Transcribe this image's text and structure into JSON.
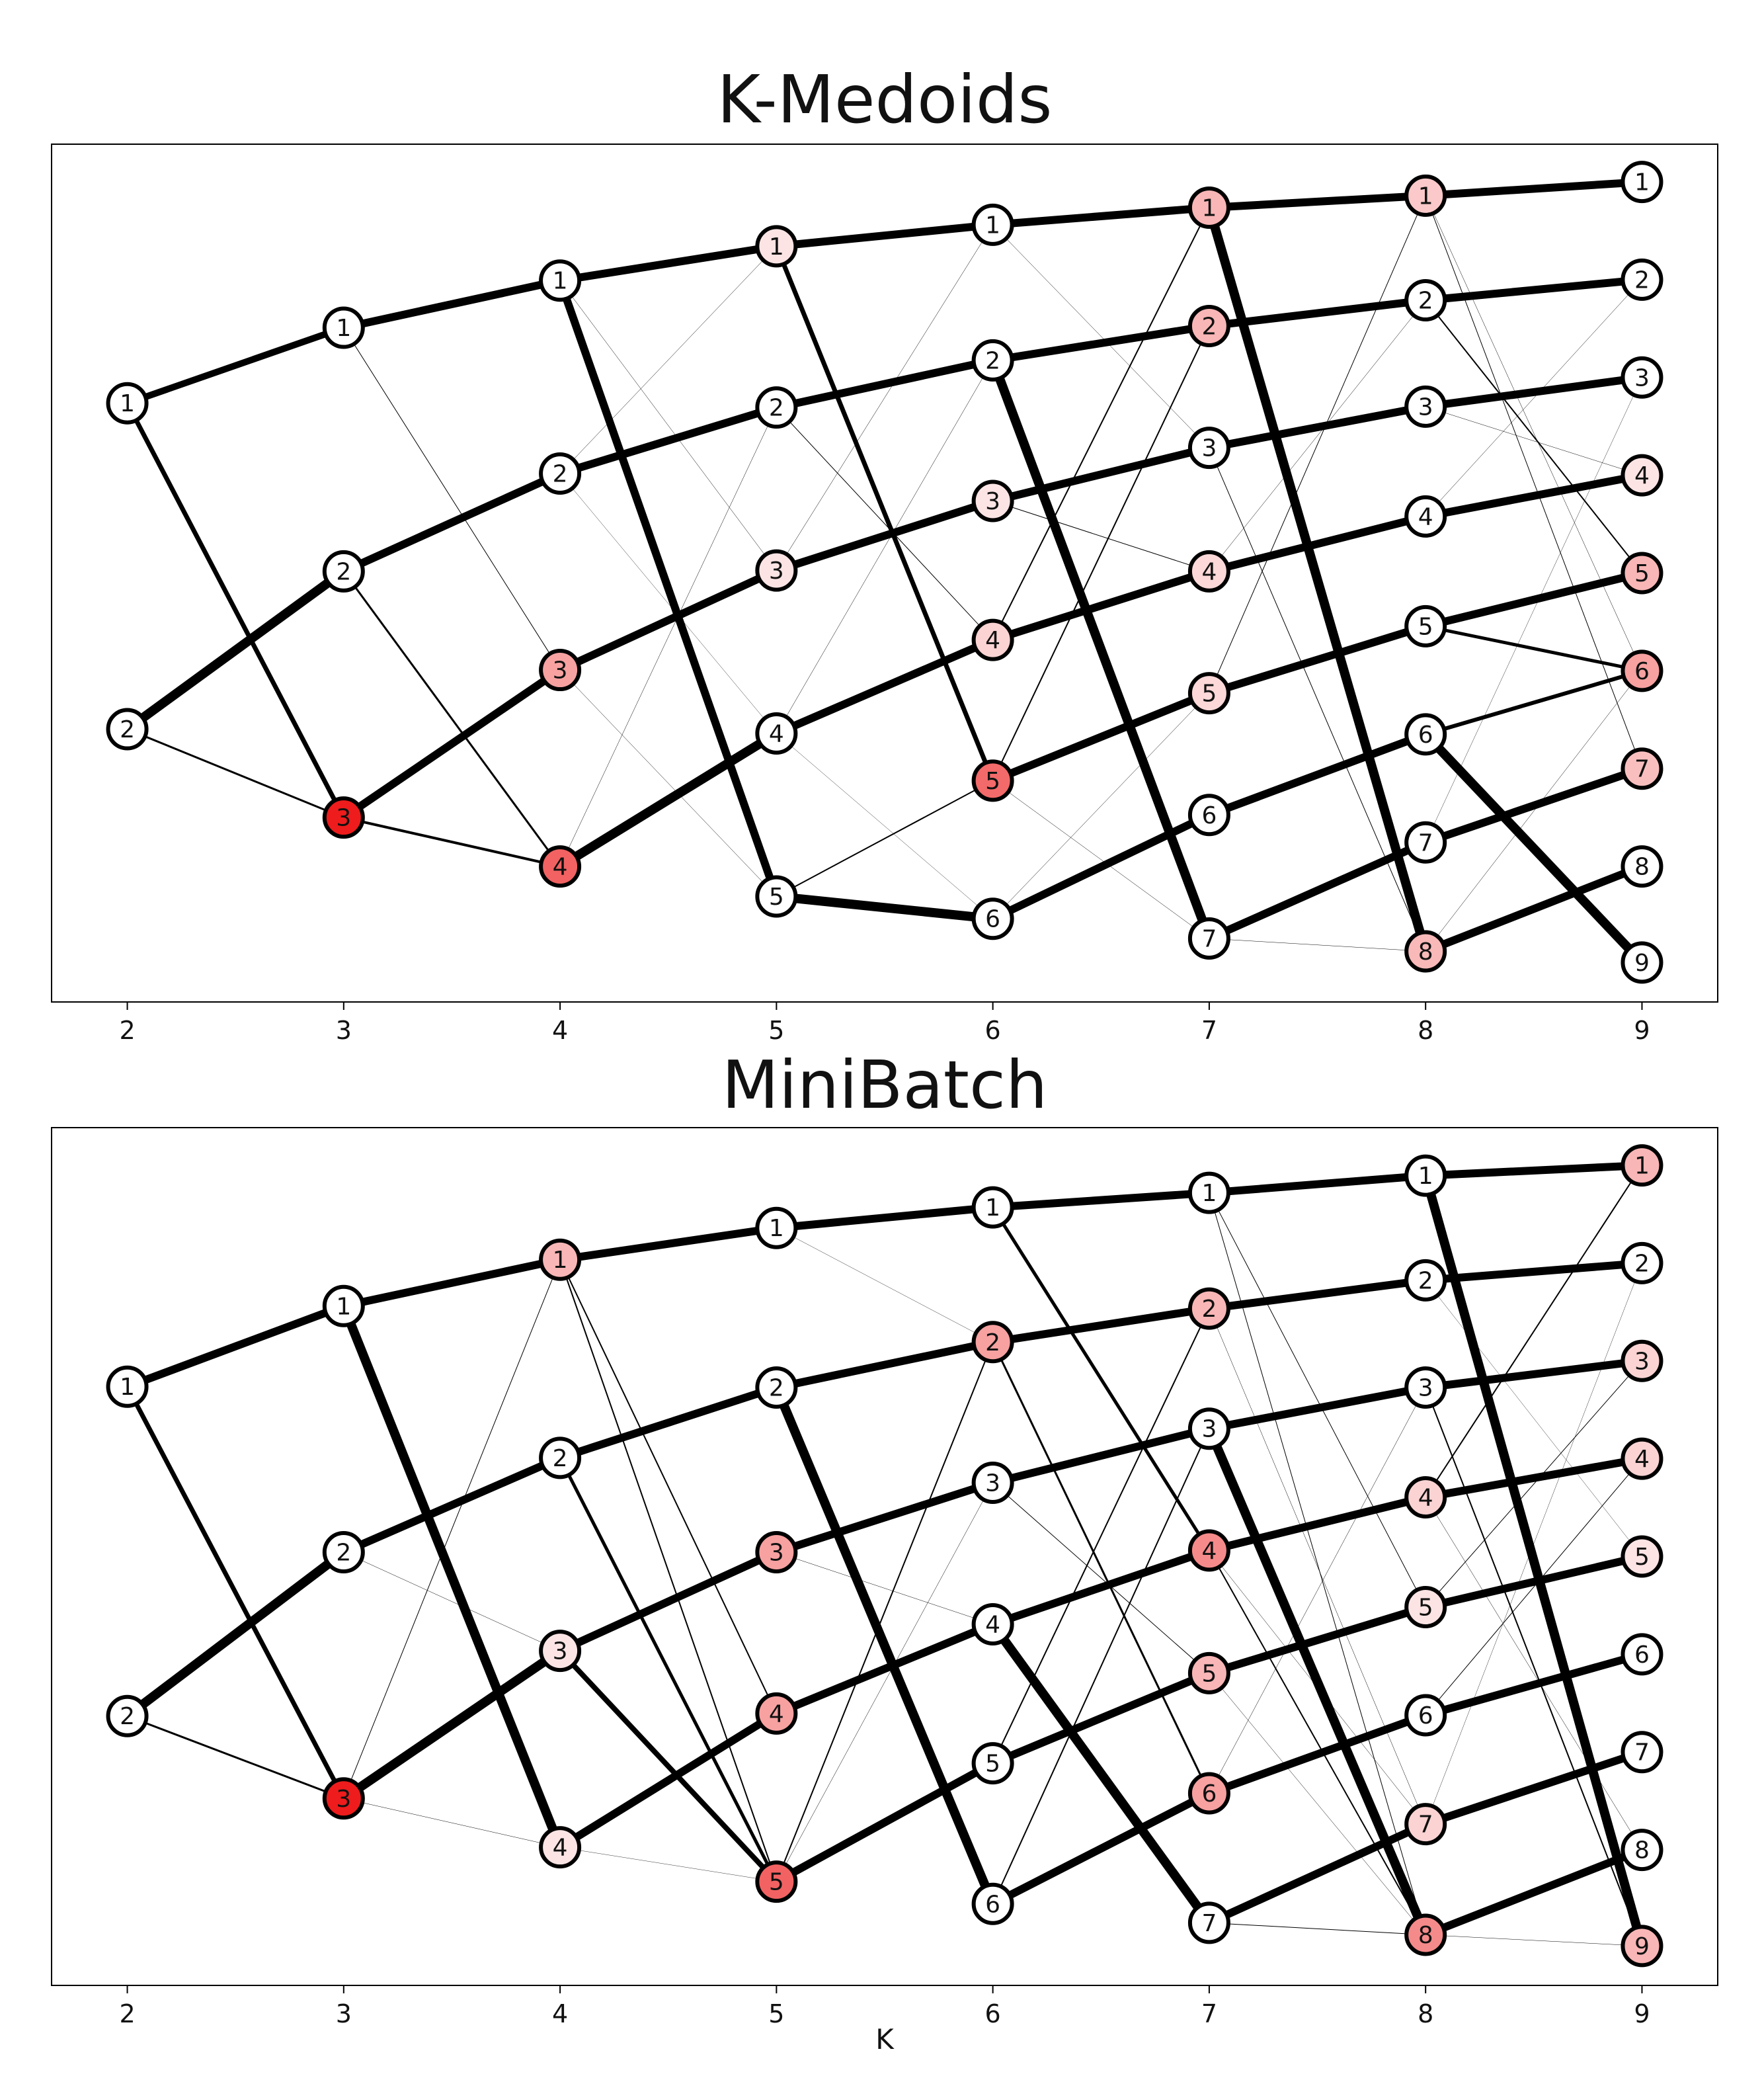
{
  "x_axis_label": "K",
  "chart_data": [
    {
      "type": "diagram",
      "title": "K-Medoids",
      "x_ticks": [
        2,
        3,
        4,
        5,
        6,
        7,
        8,
        9
      ],
      "xlim": [
        1.65,
        9.35
      ],
      "ylim": [
        0,
        1
      ],
      "node_rows": {
        "2": [
          0.698,
          0.318
        ],
        "3": [
          0.786,
          0.502,
          0.215
        ],
        "4": [
          0.841,
          0.616,
          0.387,
          0.158
        ],
        "5": [
          0.881,
          0.693,
          0.503,
          0.313,
          0.123
        ],
        "6": [
          0.906,
          0.748,
          0.584,
          0.422,
          0.258,
          0.097
        ],
        "7": [
          0.926,
          0.788,
          0.646,
          0.502,
          0.36,
          0.218,
          0.074
        ],
        "8": [
          0.94,
          0.818,
          0.694,
          0.566,
          0.438,
          0.312,
          0.186,
          0.059
        ],
        "9": [
          0.956,
          0.842,
          0.728,
          0.614,
          0.5,
          0.386,
          0.272,
          0.158,
          0.046
        ]
      },
      "node_colors": {
        "2": [
          "#ffffff",
          "#ffffff"
        ],
        "3": [
          "#ffffff",
          "#ffffff",
          "#ee1c1c"
        ],
        "4": [
          "#ffffff",
          "#ffffff",
          "#f7a1a1",
          "#f26262"
        ],
        "5": [
          "#fde4e4",
          "#ffffff",
          "#fde4e4",
          "#ffffff",
          "#ffffff"
        ],
        "6": [
          "#ffffff",
          "#ffffff",
          "#fde4e4",
          "#fbd3d3",
          "#f36a6a",
          "#ffffff"
        ],
        "7": [
          "#f9b6b6",
          "#f9b6b6",
          "#ffffff",
          "#fcd8d8",
          "#fcd8d8",
          "#ffffff",
          "#ffffff"
        ],
        "8": [
          "#fbc9c9",
          "#ffffff",
          "#ffffff",
          "#ffffff",
          "#ffffff",
          "#ffffff",
          "#ffffff",
          "#f9b9b9"
        ],
        "9": [
          "#ffffff",
          "#ffffff",
          "#ffffff",
          "#fde4e4",
          "#f9b6b6",
          "#f7a1a1",
          "#f9bfbf",
          "#ffffff",
          "#ffffff"
        ]
      },
      "edges": [
        [
          2,
          1,
          3,
          1,
          10
        ],
        [
          2,
          1,
          3,
          3,
          7
        ],
        [
          2,
          2,
          3,
          2,
          14
        ],
        [
          2,
          2,
          3,
          3,
          3
        ],
        [
          3,
          1,
          4,
          1,
          12
        ],
        [
          3,
          1,
          4,
          3,
          1
        ],
        [
          3,
          2,
          4,
          2,
          12
        ],
        [
          3,
          2,
          4,
          4,
          3
        ],
        [
          3,
          3,
          4,
          3,
          12
        ],
        [
          3,
          3,
          4,
          4,
          4
        ],
        [
          4,
          1,
          5,
          1,
          12
        ],
        [
          4,
          1,
          5,
          5,
          12
        ],
        [
          4,
          1,
          5,
          3,
          0.5
        ],
        [
          4,
          2,
          5,
          2,
          12
        ],
        [
          4,
          2,
          5,
          1,
          0.5
        ],
        [
          4,
          2,
          5,
          4,
          0.4
        ],
        [
          4,
          3,
          5,
          3,
          12
        ],
        [
          4,
          3,
          5,
          5,
          0.5
        ],
        [
          4,
          4,
          5,
          4,
          14
        ],
        [
          4,
          4,
          5,
          2,
          0.5
        ],
        [
          5,
          1,
          6,
          1,
          12
        ],
        [
          5,
          1,
          6,
          5,
          7
        ],
        [
          5,
          2,
          6,
          2,
          12
        ],
        [
          5,
          2,
          6,
          4,
          1
        ],
        [
          5,
          3,
          6,
          3,
          12
        ],
        [
          5,
          3,
          6,
          1,
          0.5
        ],
        [
          5,
          4,
          6,
          4,
          12
        ],
        [
          5,
          4,
          6,
          2,
          0.5
        ],
        [
          5,
          4,
          6,
          6,
          0.4
        ],
        [
          5,
          5,
          6,
          6,
          14
        ],
        [
          5,
          5,
          6,
          5,
          2
        ],
        [
          6,
          1,
          7,
          1,
          12
        ],
        [
          6,
          1,
          7,
          3,
          0.5
        ],
        [
          6,
          2,
          7,
          2,
          12
        ],
        [
          6,
          2,
          7,
          7,
          14
        ],
        [
          6,
          3,
          7,
          3,
          12
        ],
        [
          6,
          3,
          7,
          4,
          1
        ],
        [
          6,
          4,
          7,
          4,
          12
        ],
        [
          6,
          4,
          7,
          1,
          2
        ],
        [
          6,
          5,
          7,
          5,
          12
        ],
        [
          6,
          5,
          7,
          2,
          2
        ],
        [
          6,
          6,
          7,
          6,
          12
        ],
        [
          6,
          6,
          7,
          5,
          0.5
        ],
        [
          6,
          5,
          7,
          7,
          0.5
        ],
        [
          7,
          1,
          8,
          1,
          12
        ],
        [
          7,
          1,
          8,
          8,
          14
        ],
        [
          7,
          2,
          8,
          2,
          12
        ],
        [
          7,
          3,
          8,
          3,
          12
        ],
        [
          7,
          3,
          8,
          8,
          1
        ],
        [
          7,
          4,
          8,
          4,
          12
        ],
        [
          7,
          4,
          8,
          2,
          0.5
        ],
        [
          7,
          5,
          8,
          5,
          12
        ],
        [
          7,
          5,
          8,
          1,
          1
        ],
        [
          7,
          6,
          8,
          6,
          12
        ],
        [
          7,
          7,
          8,
          7,
          12
        ],
        [
          7,
          7,
          8,
          8,
          0.5
        ],
        [
          8,
          1,
          9,
          1,
          12
        ],
        [
          8,
          1,
          9,
          7,
          1
        ],
        [
          8,
          1,
          9,
          6,
          0.5
        ],
        [
          8,
          2,
          9,
          2,
          12
        ],
        [
          8,
          2,
          9,
          5,
          2
        ],
        [
          8,
          3,
          9,
          3,
          12
        ],
        [
          8,
          3,
          9,
          4,
          0.5
        ],
        [
          8,
          4,
          9,
          4,
          12
        ],
        [
          8,
          4,
          9,
          2,
          0.5
        ],
        [
          8,
          5,
          9,
          5,
          12
        ],
        [
          8,
          5,
          9,
          6,
          5
        ],
        [
          8,
          6,
          9,
          6,
          6
        ],
        [
          8,
          6,
          9,
          9,
          14
        ],
        [
          8,
          7,
          9,
          7,
          12
        ],
        [
          8,
          7,
          9,
          3,
          0.4
        ],
        [
          8,
          8,
          9,
          8,
          12
        ],
        [
          8,
          8,
          9,
          6,
          0.5
        ]
      ]
    },
    {
      "type": "diagram",
      "title": "MiniBatch",
      "x_ticks": [
        2,
        3,
        4,
        5,
        6,
        7,
        8,
        9
      ],
      "xlim": [
        1.65,
        9.35
      ],
      "ylim": [
        0,
        1
      ],
      "node_rows": {
        "2": [
          0.698,
          0.314
        ],
        "3": [
          0.792,
          0.505,
          0.218
        ],
        "4": [
          0.846,
          0.615,
          0.39,
          0.161
        ],
        "5": [
          0.883,
          0.697,
          0.505,
          0.317,
          0.121
        ],
        "6": [
          0.907,
          0.75,
          0.586,
          0.421,
          0.259,
          0.095
        ],
        "7": [
          0.924,
          0.789,
          0.649,
          0.507,
          0.364,
          0.224,
          0.073
        ],
        "8": [
          0.944,
          0.822,
          0.697,
          0.569,
          0.441,
          0.315,
          0.188,
          0.059
        ],
        "9": [
          0.956,
          0.842,
          0.728,
          0.614,
          0.5,
          0.386,
          0.272,
          0.158,
          0.046
        ]
      },
      "node_colors": {
        "2": [
          "#ffffff",
          "#ffffff"
        ],
        "3": [
          "#ffffff",
          "#ffffff",
          "#ee1c1c"
        ],
        "4": [
          "#f9b6b6",
          "#ffffff",
          "#fde4e4",
          "#fde4e4"
        ],
        "5": [
          "#ffffff",
          "#ffffff",
          "#f7a1a1",
          "#f7a1a1",
          "#f26262"
        ],
        "6": [
          "#ffffff",
          "#f7a1a1",
          "#ffffff",
          "#ffffff",
          "#ffffff",
          "#ffffff"
        ],
        "7": [
          "#ffffff",
          "#f9b6b6",
          "#ffffff",
          "#f58a8a",
          "#f9b6b6",
          "#f7a1a1",
          "#ffffff"
        ],
        "8": [
          "#ffffff",
          "#ffffff",
          "#ffffff",
          "#fbd3d3",
          "#fde4e4",
          "#ffffff",
          "#fbd3d3",
          "#f58a8a"
        ],
        "9": [
          "#f9b6b6",
          "#ffffff",
          "#fbd3d3",
          "#fbd3d3",
          "#fde4e4",
          "#ffffff",
          "#ffffff",
          "#ffffff",
          "#f9b6b6"
        ]
      },
      "edges": [
        [
          2,
          1,
          3,
          1,
          12
        ],
        [
          2,
          1,
          3,
          3,
          7
        ],
        [
          2,
          2,
          3,
          2,
          14
        ],
        [
          2,
          2,
          3,
          3,
          3
        ],
        [
          3,
          1,
          4,
          1,
          12
        ],
        [
          3,
          1,
          4,
          4,
          14
        ],
        [
          3,
          2,
          4,
          2,
          12
        ],
        [
          3,
          2,
          4,
          3,
          0.5
        ],
        [
          3,
          3,
          4,
          3,
          14
        ],
        [
          3,
          3,
          4,
          1,
          1
        ],
        [
          3,
          3,
          4,
          4,
          0.5
        ],
        [
          4,
          1,
          5,
          1,
          12
        ],
        [
          4,
          1,
          5,
          4,
          2
        ],
        [
          4,
          1,
          5,
          5,
          2
        ],
        [
          4,
          2,
          5,
          2,
          12
        ],
        [
          4,
          2,
          5,
          5,
          5
        ],
        [
          4,
          3,
          5,
          3,
          12
        ],
        [
          4,
          3,
          5,
          5,
          8
        ],
        [
          4,
          4,
          5,
          4,
          12
        ],
        [
          4,
          4,
          5,
          5,
          0.4
        ],
        [
          5,
          1,
          6,
          1,
          12
        ],
        [
          5,
          1,
          6,
          2,
          0.4
        ],
        [
          5,
          2,
          6,
          2,
          12
        ],
        [
          5,
          2,
          6,
          6,
          14
        ],
        [
          5,
          3,
          6,
          3,
          12
        ],
        [
          5,
          3,
          6,
          4,
          0.5
        ],
        [
          5,
          4,
          6,
          4,
          12
        ],
        [
          5,
          5,
          6,
          5,
          12
        ],
        [
          5,
          5,
          6,
          2,
          2
        ],
        [
          5,
          5,
          6,
          3,
          0.5
        ],
        [
          6,
          1,
          7,
          1,
          12
        ],
        [
          6,
          1,
          7,
          4,
          5
        ],
        [
          6,
          2,
          7,
          2,
          12
        ],
        [
          6,
          2,
          7,
          6,
          3
        ],
        [
          6,
          3,
          7,
          3,
          12
        ],
        [
          6,
          3,
          7,
          5,
          1
        ],
        [
          6,
          4,
          7,
          4,
          12
        ],
        [
          6,
          4,
          7,
          7,
          14
        ],
        [
          6,
          5,
          7,
          5,
          12
        ],
        [
          6,
          5,
          7,
          2,
          2
        ],
        [
          6,
          6,
          7,
          6,
          12
        ],
        [
          6,
          6,
          7,
          3,
          2
        ],
        [
          7,
          1,
          8,
          1,
          12
        ],
        [
          7,
          1,
          8,
          8,
          1
        ],
        [
          7,
          1,
          8,
          5,
          1
        ],
        [
          7,
          2,
          8,
          2,
          12
        ],
        [
          7,
          2,
          8,
          7,
          0.5
        ],
        [
          7,
          3,
          8,
          3,
          12
        ],
        [
          7,
          3,
          8,
          8,
          14
        ],
        [
          7,
          4,
          8,
          4,
          12
        ],
        [
          7,
          4,
          8,
          8,
          2
        ],
        [
          7,
          4,
          8,
          7,
          0.5
        ],
        [
          7,
          5,
          8,
          5,
          12
        ],
        [
          7,
          5,
          8,
          8,
          0.5
        ],
        [
          7,
          6,
          8,
          6,
          12
        ],
        [
          7,
          6,
          8,
          3,
          0.5
        ],
        [
          7,
          7,
          8,
          7,
          12
        ],
        [
          7,
          7,
          8,
          8,
          1
        ],
        [
          8,
          1,
          9,
          1,
          12
        ],
        [
          8,
          1,
          9,
          9,
          14
        ],
        [
          8,
          2,
          9,
          2,
          12
        ],
        [
          8,
          2,
          9,
          5,
          0.4
        ],
        [
          8,
          3,
          9,
          3,
          12
        ],
        [
          8,
          3,
          9,
          9,
          2
        ],
        [
          8,
          4,
          9,
          4,
          12
        ],
        [
          8,
          4,
          9,
          1,
          2
        ],
        [
          8,
          5,
          9,
          5,
          12
        ],
        [
          8,
          5,
          9,
          3,
          1
        ],
        [
          8,
          6,
          9,
          6,
          12
        ],
        [
          8,
          6,
          9,
          4,
          1
        ],
        [
          8,
          7,
          9,
          7,
          12
        ],
        [
          8,
          7,
          9,
          2,
          0.4
        ],
        [
          8,
          8,
          9,
          8,
          12
        ],
        [
          8,
          8,
          9,
          9,
          0.5
        ],
        [
          8,
          4,
          9,
          8,
          0.5
        ]
      ]
    }
  ]
}
